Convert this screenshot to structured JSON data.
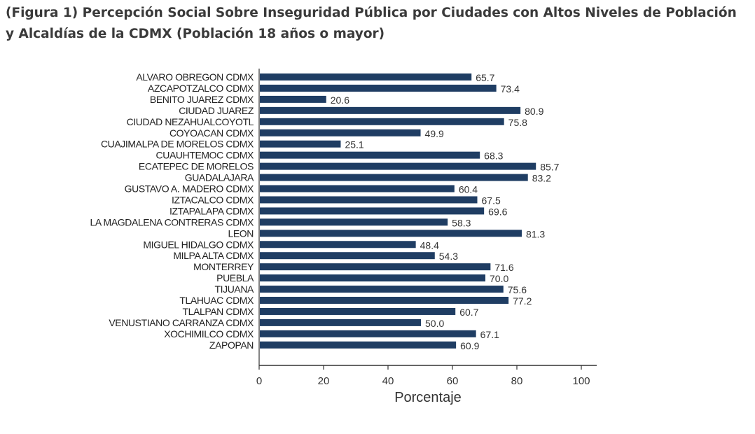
{
  "chart_data": {
    "type": "bar",
    "orientation": "horizontal",
    "title": "(Figura 1) Percepción Social Sobre Inseguridad Pública por Ciudades con Altos Niveles de Población y Alcaldías de la CDMX (Población 18 años o mayor)",
    "xlabel": "Porcentaje",
    "ylabel": "",
    "xlim": [
      0,
      100
    ],
    "xticks": [
      0,
      20,
      40,
      60,
      80,
      100
    ],
    "grid": false,
    "bar_color": "#1f3d63",
    "categories": [
      "ALVARO OBREGON CDMX",
      "AZCAPOTZALCO CDMX",
      "BENITO JUAREZ CDMX",
      "CIUDAD JUAREZ",
      "CIUDAD NEZAHUALCOYOTL",
      "COYOACAN CDMX",
      "CUAJIMALPA DE MORELOS CDMX",
      "CUAUHTEMOC CDMX",
      "ECATEPEC DE MORELOS",
      "GUADALAJARA",
      "GUSTAVO A. MADERO CDMX",
      "IZTACALCO CDMX",
      "IZTAPALAPA CDMX",
      "LA MAGDALENA CONTRERAS CDMX",
      "LEON",
      "MIGUEL HIDALGO CDMX",
      "MILPA ALTA CDMX",
      "MONTERREY",
      "PUEBLA",
      "TIJUANA",
      "TLAHUAC CDMX",
      "TLALPAN CDMX",
      "VENUSTIANO CARRANZA CDMX",
      "XOCHIMILCO CDMX",
      "ZAPOPAN"
    ],
    "values": [
      65.7,
      73.4,
      20.6,
      80.9,
      75.8,
      49.9,
      25.1,
      68.3,
      85.7,
      83.2,
      60.4,
      67.5,
      69.6,
      58.3,
      81.3,
      48.4,
      54.3,
      71.6,
      70.0,
      75.6,
      77.2,
      60.7,
      50.0,
      67.1,
      60.9
    ]
  }
}
